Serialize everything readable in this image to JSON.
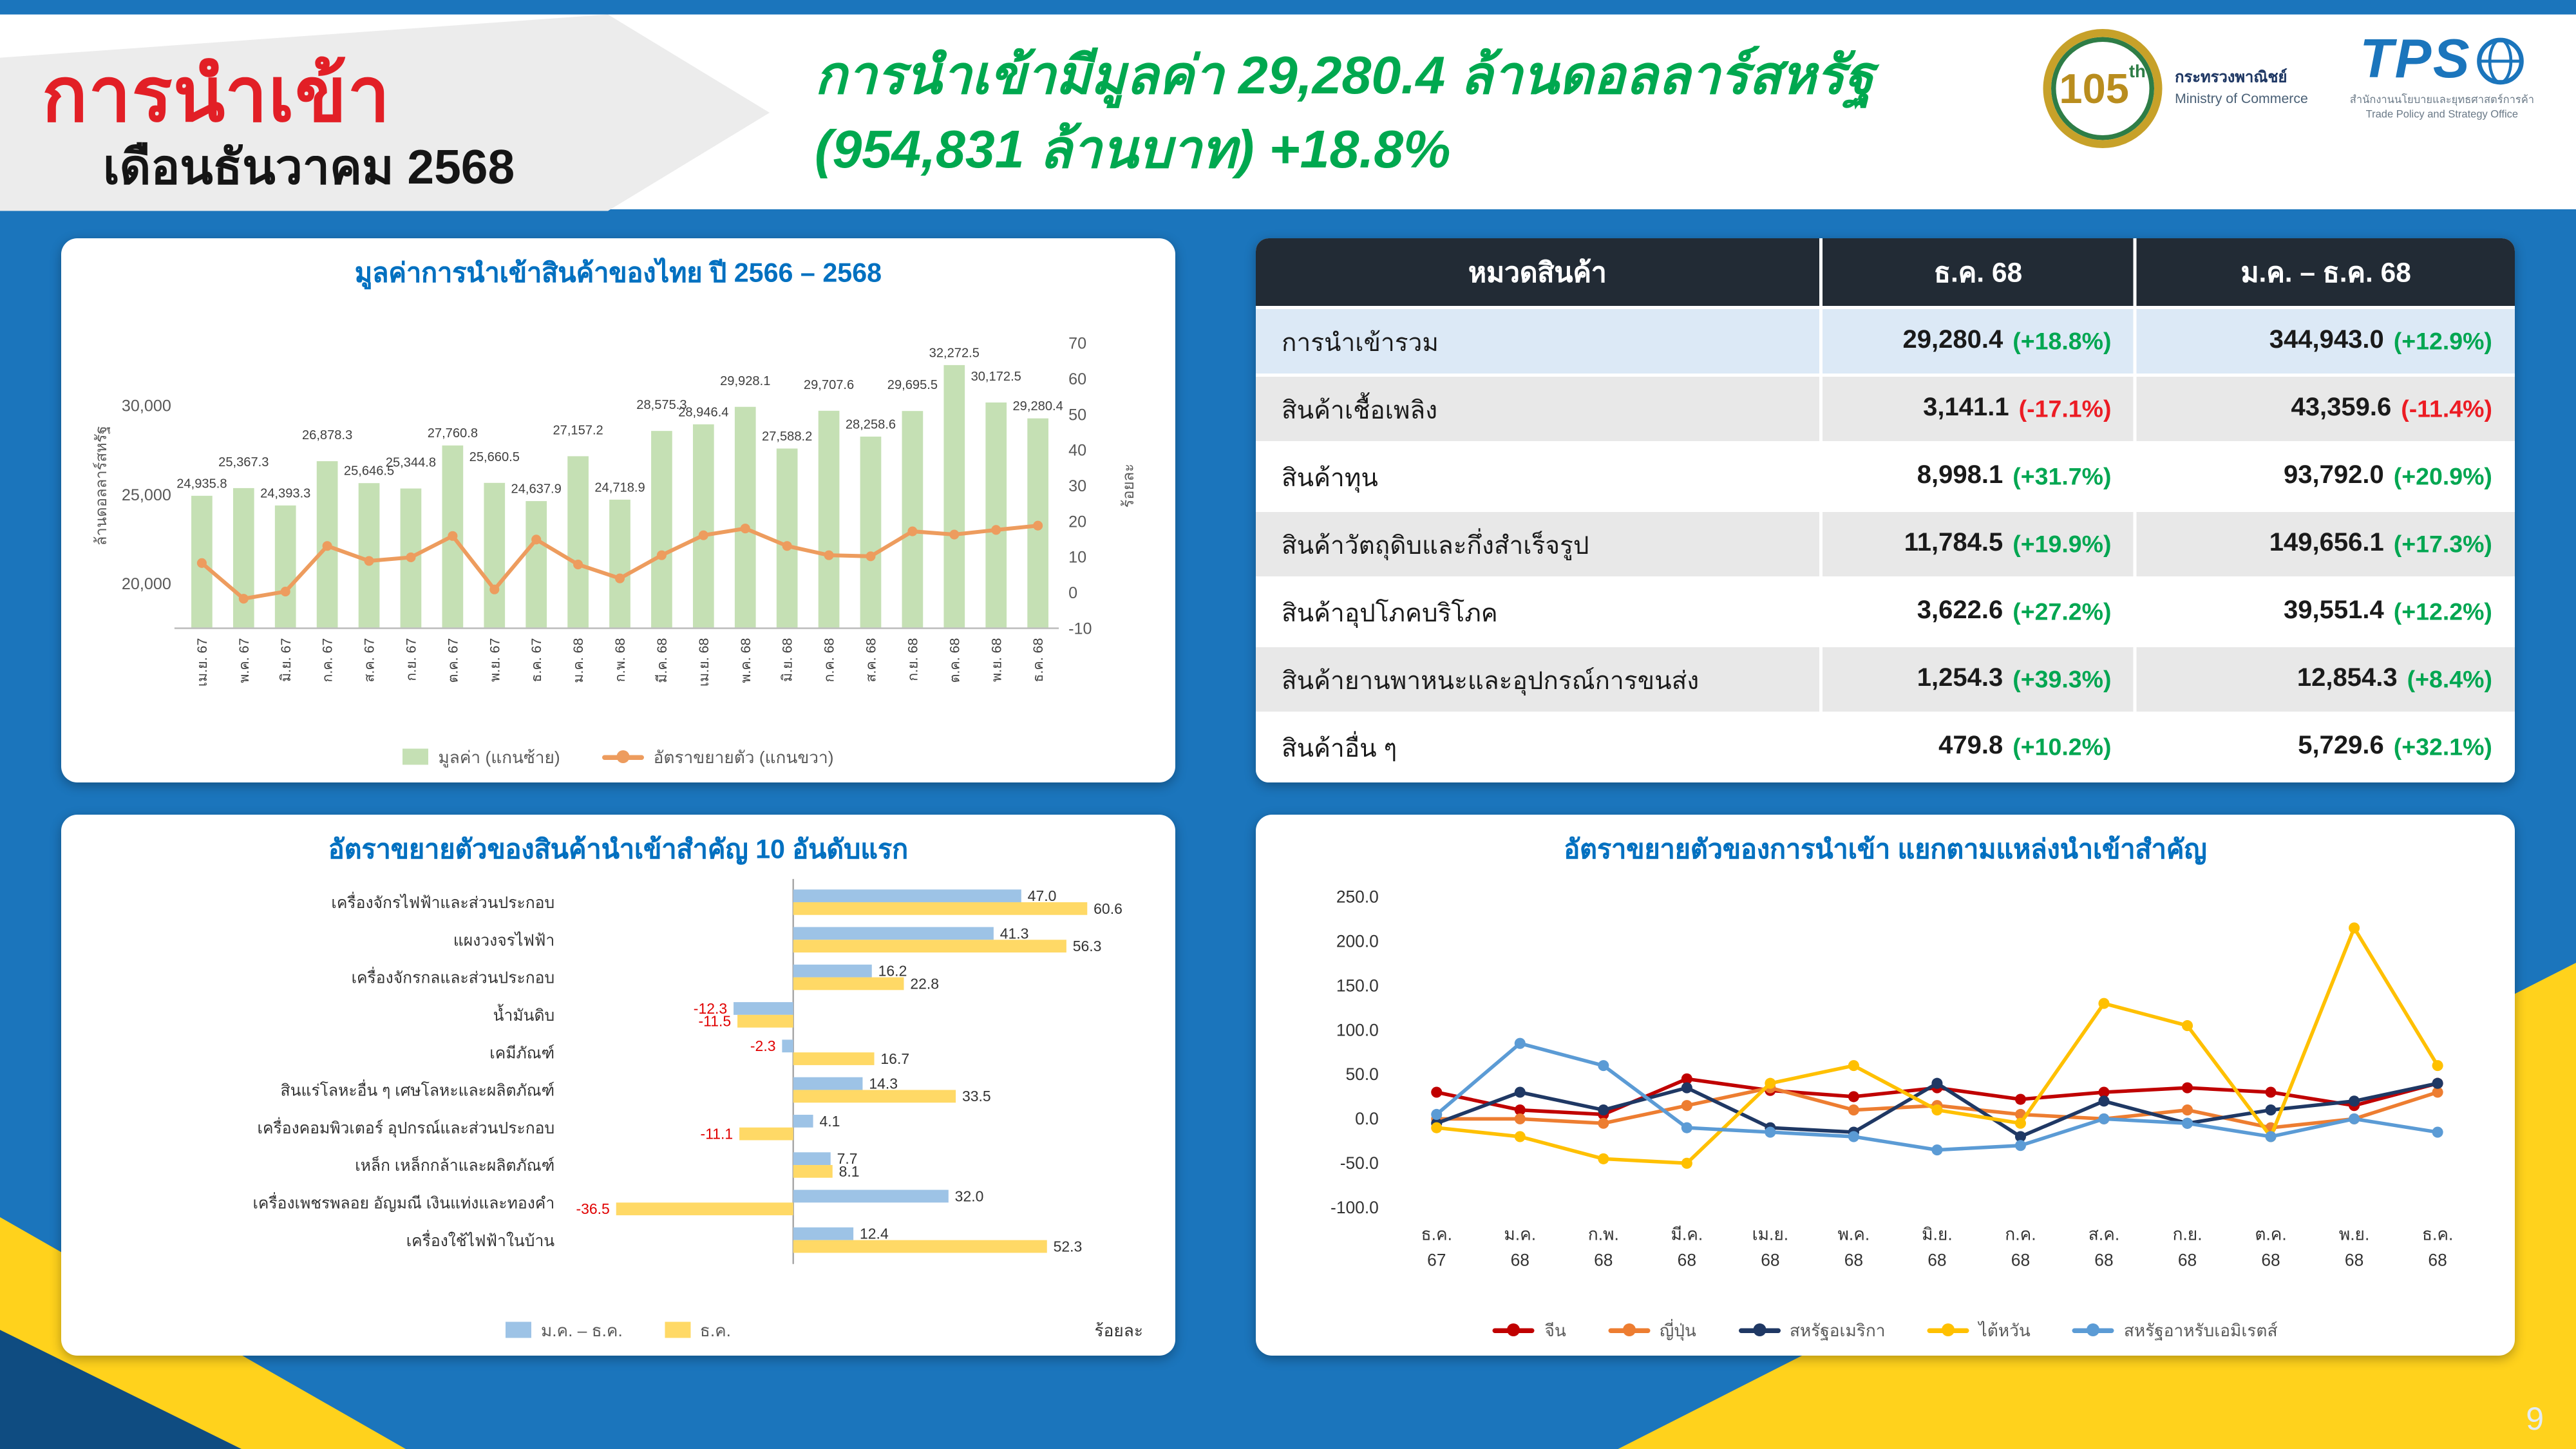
{
  "page": {
    "title": "การนำเข้า",
    "subtitle": "เดือนธันวาคม 2568",
    "headline": {
      "line1": "การนำเข้ามีมูลค่า 29,280.4 ล้านดอลลาร์สหรัฐ",
      "line2": "(954,831 ล้านบาท)",
      "growth": "+18.8%"
    },
    "page_number": "9",
    "colors": {
      "background_blue": "#1B75BC",
      "accent_yellow": "#FFD21C",
      "title_red": "#E21F26",
      "headline_green": "#00A84F",
      "positive_green": "#00A651",
      "negative_red": "#EC1C24",
      "panel_title_blue": "#0070C0",
      "table_header_dark": "#222B35"
    }
  },
  "logos": {
    "moc": {
      "badge": "105",
      "badge_suffix": "th",
      "name_th": "กระทรวงพาณิชย์",
      "name_en": "Ministry of Commerce"
    },
    "tpso": {
      "acronym": "TPS",
      "name_th": "สำนักงานนโยบายและยุทธศาสตร์การค้า",
      "name_en": "Trade Policy and Strategy Office"
    }
  },
  "table": {
    "headers": [
      "หมวดสินค้า",
      "ธ.ค. 68",
      "ม.ค. – ธ.ค. 68"
    ],
    "rows": [
      {
        "label": "การนำเข้ารวม",
        "dec_value": "29,280.4",
        "dec_pct": "(+18.8%)",
        "ytd_value": "344,943.0",
        "ytd_pct": "(+12.9%)"
      },
      {
        "label": "สินค้าเชื้อเพลิง",
        "dec_value": "3,141.1",
        "dec_pct": "(-17.1%)",
        "ytd_value": "43,359.6",
        "ytd_pct": "(-11.4%)"
      },
      {
        "label": "สินค้าทุน",
        "dec_value": "8,998.1",
        "dec_pct": "(+31.7%)",
        "ytd_value": "93,792.0",
        "ytd_pct": "(+20.9%)"
      },
      {
        "label": "สินค้าวัตถุดิบและกึ่งสำเร็จรูป",
        "dec_value": "11,784.5",
        "dec_pct": "(+19.9%)",
        "ytd_value": "149,656.1",
        "ytd_pct": "(+17.3%)"
      },
      {
        "label": "สินค้าอุปโภคบริโภค",
        "dec_value": "3,622.6",
        "dec_pct": "(+27.2%)",
        "ytd_value": "39,551.4",
        "ytd_pct": "(+12.2%)"
      },
      {
        "label": "สินค้ายานพาหนะและอุปกรณ์การขนส่ง",
        "dec_value": "1,254.3",
        "dec_pct": "(+39.3%)",
        "ytd_value": "12,854.3",
        "ytd_pct": "(+8.4%)"
      },
      {
        "label": "สินค้าอื่น ๆ",
        "dec_value": "479.8",
        "dec_pct": "(+10.2%)",
        "ytd_value": "5,729.6",
        "ytd_pct": "(+32.1%)"
      }
    ]
  },
  "chart_data": [
    {
      "type": "bar",
      "subtype": "combo-bar-line",
      "title": "มูลค่าการนำเข้าสินค้าของไทย ปี 2566 – 2568",
      "left_axis": {
        "label": "ล้านดอลลาร์สหรัฐ",
        "ticks": [
          "20,000",
          "25,000",
          "30,000"
        ],
        "range": [
          17500,
          33500
        ]
      },
      "right_axis": {
        "label": "ร้อยละ",
        "ticks": [
          -10,
          0,
          10,
          20,
          30,
          40,
          50,
          60,
          70
        ],
        "range": [
          -10,
          70
        ]
      },
      "categories": [
        "เม.ย. 67",
        "พ.ค. 67",
        "มิ.ย. 67",
        "ก.ค. 67",
        "ส.ค. 67",
        "ก.ย. 67",
        "ต.ค. 67",
        "พ.ย. 67",
        "ธ.ค. 67",
        "ม.ค. 68",
        "ก.พ. 68",
        "มี.ค. 68",
        "เม.ย. 68",
        "พ.ค. 68",
        "มิ.ย. 68",
        "ก.ค. 68",
        "ส.ค. 68",
        "ก.ย. 68",
        "ต.ค. 68",
        "พ.ย. 68",
        "ธ.ค. 68"
      ],
      "bars": {
        "name": "มูลค่า (แกนซ้าย)",
        "color": "#C5E0B4",
        "values": [
          24935.8,
          25367.3,
          24393.3,
          26878.3,
          25646.5,
          25344.8,
          27760.8,
          25660.5,
          24637.9,
          27157.2,
          24718.9,
          28575.3,
          28946.4,
          29928.1,
          27588.2,
          29707.6,
          28258.6,
          29695.5,
          32272.5,
          30172.5,
          29280.4
        ],
        "labels": [
          "24,935.8",
          "25,367.3",
          "24,393.3",
          "26,878.3",
          "25,646.5",
          "25,344.8",
          "27,760.8",
          "25,660.5",
          "24,637.9",
          "27,157.2",
          "24,718.9",
          "28,575.3",
          "28,946.4",
          "29,928.1",
          "27,588.2",
          "29,707.6",
          "28,258.6",
          "29,695.5",
          "32,272.5",
          "30,172.5",
          "29,280.4"
        ]
      },
      "line": {
        "name": "อัตราขยายตัว (แกนขวา)",
        "color": "#ED9C5E",
        "estimated": true,
        "values": [
          8.3,
          -1.7,
          0.3,
          13.1,
          8.9,
          9.9,
          15.9,
          0.9,
          14.9,
          7.9,
          4.0,
          10.5,
          16.1,
          18.0,
          13.1,
          10.5,
          10.2,
          17.2,
          16.3,
          17.6,
          18.8
        ]
      }
    },
    {
      "type": "bar",
      "orientation": "horizontal",
      "title": "อัตราขยายตัวของสินค้านำเข้าสำคัญ 10 อันดับแรก",
      "unit_label": "ร้อยละ",
      "xlim": [
        -45,
        70
      ],
      "categories": [
        "เครื่องจักรไฟฟ้าและส่วนประกอบ",
        "แผงวงจรไฟฟ้า",
        "เครื่องจักรกลและส่วนประกอบ",
        "น้ำมันดิบ",
        "เคมีภัณฑ์",
        "สินแร่โลหะอื่น ๆ เศษโลหะและผลิตภัณฑ์",
        "เครื่องคอมพิวเตอร์ อุปกรณ์และส่วนประกอบ",
        "เหล็ก เหล็กกล้าและผลิตภัณฑ์",
        "เครื่องเพชรพลอย อัญมณี เงินแท่งและทองคำ",
        "เครื่องใช้ไฟฟ้าในบ้าน"
      ],
      "series": [
        {
          "name": "ม.ค. – ธ.ค.",
          "color": "#9DC3E6",
          "values": [
            47.0,
            41.3,
            16.2,
            -12.3,
            -2.3,
            14.3,
            4.1,
            7.7,
            32.0,
            12.4
          ]
        },
        {
          "name": "ธ.ค.",
          "color": "#FFD966",
          "values": [
            60.6,
            56.3,
            22.8,
            -11.5,
            16.7,
            33.5,
            -11.1,
            8.1,
            -36.5,
            52.3
          ]
        }
      ]
    },
    {
      "type": "line",
      "title": "อัตราขยายตัวของการนำเข้า แยกตามแหล่งนำเข้าสำคัญ",
      "ylim": [
        -100,
        250
      ],
      "y_ticks": [
        "250.0",
        "200.0",
        "150.0",
        "100.0",
        "50.0",
        "0.0",
        "-50.0",
        "-100.0"
      ],
      "categories_line1": [
        "ธ.ค.",
        "ม.ค.",
        "ก.พ.",
        "มี.ค.",
        "เม.ย.",
        "พ.ค.",
        "มิ.ย.",
        "ก.ค.",
        "ส.ค.",
        "ก.ย.",
        "ต.ค.",
        "พ.ย.",
        "ธ.ค."
      ],
      "categories_line2": [
        "67",
        "68",
        "68",
        "68",
        "68",
        "68",
        "68",
        "68",
        "68",
        "68",
        "68",
        "68",
        "68"
      ],
      "estimated": true,
      "series": [
        {
          "name": "จีน",
          "color": "#C00000",
          "values": [
            30,
            10,
            5,
            45,
            32,
            25,
            35,
            22,
            30,
            35,
            30,
            15,
            40
          ]
        },
        {
          "name": "ญี่ปุ่น",
          "color": "#ED7D31",
          "values": [
            0,
            0,
            -5,
            15,
            35,
            10,
            15,
            5,
            0,
            10,
            -10,
            0,
            30
          ]
        },
        {
          "name": "สหรัฐอเมริกา",
          "color": "#1F3864",
          "values": [
            -5,
            30,
            10,
            35,
            -10,
            -15,
            40,
            -20,
            20,
            -5,
            10,
            20,
            40
          ]
        },
        {
          "name": "ไต้หวัน",
          "color": "#FFC000",
          "values": [
            -10,
            -20,
            -45,
            -50,
            40,
            60,
            10,
            -5,
            130,
            105,
            -20,
            215,
            60
          ]
        },
        {
          "name": "สหรัฐอาหรับเอมิเรตส์",
          "color": "#5B9BD5",
          "values": [
            5,
            85,
            60,
            -10,
            -15,
            -20,
            -35,
            -30,
            0,
            -5,
            -20,
            0,
            -15
          ]
        }
      ]
    }
  ]
}
